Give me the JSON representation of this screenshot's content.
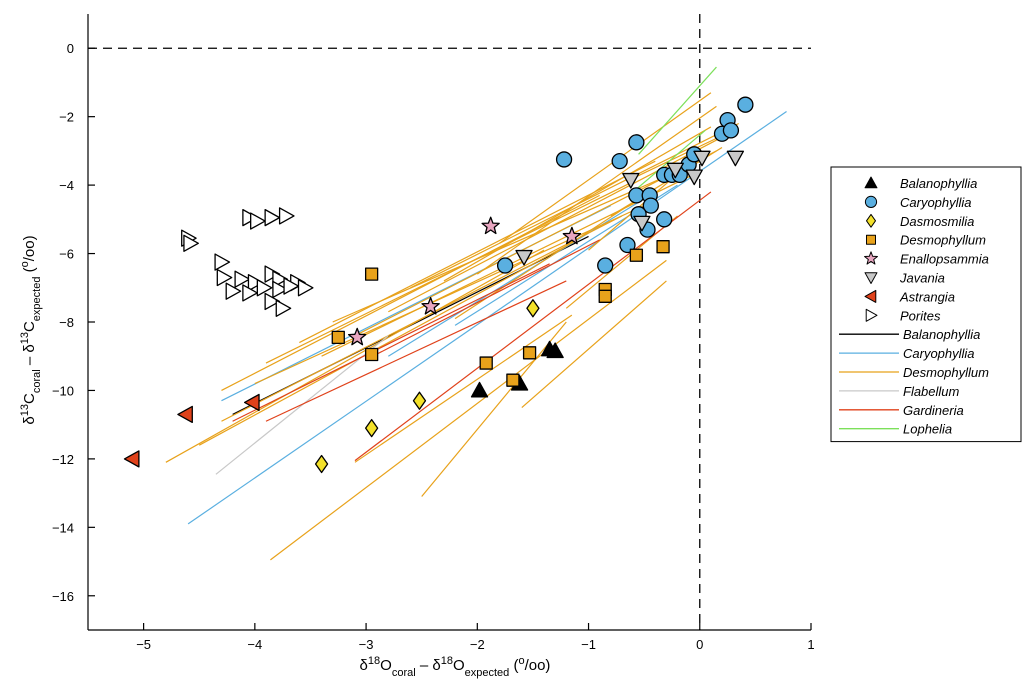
{
  "chart_data": {
    "type": "scatter",
    "title": "",
    "xlabel": {
      "base": "δ",
      "sup1": "18",
      "mid": "O",
      "sub1": "coral",
      "dash": " – δ",
      "sup2": "18",
      "mid2": "O",
      "sub2": "expected",
      "unit_open": " (",
      "unit_sup": "o",
      "unit_rest": "/oo)"
    },
    "ylabel": {
      "base": "δ",
      "sup1": "13",
      "mid": "C",
      "sub1": "coral",
      "dash": " – δ",
      "sup2": "13",
      "mid2": "C",
      "sub2": "expected",
      "unit_open": " (",
      "unit_sup": "o",
      "unit_rest": "/oo)"
    },
    "xlim": [
      -5.5,
      1
    ],
    "ylim": [
      -17,
      1
    ],
    "xticks": [
      -5,
      -4,
      -3,
      -2,
      -1,
      0,
      1
    ],
    "yticks": [
      0,
      -2,
      -4,
      -6,
      -8,
      -10,
      -12,
      -14,
      -16
    ],
    "xtick_labels": [
      "−5",
      "−4",
      "−3",
      "−2",
      "−1",
      "0",
      "1"
    ],
    "ytick_labels": [
      "0",
      "−2",
      "−4",
      "−6",
      "−8",
      "−10",
      "−12",
      "−14",
      "−16"
    ],
    "reference_lines": {
      "y": 0,
      "x": 0,
      "style": "dashed",
      "color": "#000000"
    },
    "grid": false,
    "legend_position": "right",
    "series": [
      {
        "name": "Balanophyllia",
        "marker": "triangle-up",
        "color": "#000000",
        "points": [
          [
            -1.98,
            -10.0
          ],
          [
            -1.62,
            -9.8
          ],
          [
            -1.35,
            -8.8
          ],
          [
            -1.3,
            -8.85
          ]
        ]
      },
      {
        "name": "Caryophyllia",
        "marker": "circle",
        "color": "#5AAFE0",
        "points": [
          [
            -1.22,
            -3.25
          ],
          [
            -1.75,
            -6.35
          ],
          [
            -0.72,
            -3.3
          ],
          [
            -0.57,
            -2.75
          ],
          [
            -0.32,
            -3.7
          ],
          [
            -0.25,
            -3.7
          ],
          [
            -0.18,
            -3.7
          ],
          [
            -0.1,
            -3.4
          ],
          [
            -0.05,
            -3.1
          ],
          [
            -0.57,
            -4.3
          ],
          [
            -0.45,
            -4.3
          ],
          [
            -0.44,
            -4.6
          ],
          [
            -0.32,
            -5.0
          ],
          [
            -0.55,
            -4.85
          ],
          [
            -0.47,
            -5.3
          ],
          [
            -0.65,
            -5.75
          ],
          [
            -0.85,
            -6.35
          ],
          [
            0.2,
            -2.5
          ],
          [
            0.25,
            -2.1
          ],
          [
            0.28,
            -2.4
          ],
          [
            0.41,
            -1.65
          ]
        ]
      },
      {
        "name": "Dasmosmilia",
        "marker": "diamond",
        "color": "#F3E12A",
        "points": [
          [
            -1.5,
            -7.6
          ],
          [
            -2.52,
            -10.3
          ],
          [
            -2.95,
            -11.1
          ],
          [
            -3.4,
            -12.15
          ]
        ]
      },
      {
        "name": "Desmophyllum",
        "marker": "square",
        "color": "#E8A21B",
        "points": [
          [
            -2.95,
            -6.6
          ],
          [
            -3.25,
            -8.45
          ],
          [
            -2.95,
            -8.95
          ],
          [
            -1.92,
            -9.2
          ],
          [
            -1.68,
            -9.7
          ],
          [
            -1.53,
            -8.9
          ],
          [
            -0.85,
            -7.05
          ],
          [
            -0.85,
            -7.25
          ],
          [
            -0.57,
            -6.05
          ],
          [
            -0.33,
            -5.8
          ]
        ]
      },
      {
        "name": "Enallopsammia",
        "marker": "star",
        "color": "#E8A6C0",
        "points": [
          [
            -1.88,
            -5.2
          ],
          [
            -1.15,
            -5.5
          ],
          [
            -2.42,
            -7.55
          ],
          [
            -3.08,
            -8.45
          ]
        ]
      },
      {
        "name": "Javania",
        "marker": "triangle-down",
        "color": "#C8C8C8",
        "points": [
          [
            -0.62,
            -3.85
          ],
          [
            -0.22,
            -3.55
          ],
          [
            -0.05,
            -3.75
          ],
          [
            0.02,
            -3.2
          ],
          [
            0.32,
            -3.2
          ],
          [
            -0.52,
            -5.1
          ],
          [
            -1.58,
            -6.1
          ]
        ]
      },
      {
        "name": "Astrangia",
        "marker": "triangle-left",
        "color": "#E0421B",
        "points": [
          [
            -5.1,
            -12.0
          ],
          [
            -4.62,
            -10.7
          ],
          [
            -4.02,
            -10.35
          ]
        ]
      },
      {
        "name": "Porites",
        "marker": "triangle-right",
        "color": "#FFFFFF",
        "points": [
          [
            -4.6,
            -5.55
          ],
          [
            -4.58,
            -5.7
          ],
          [
            -4.3,
            -6.25
          ],
          [
            -4.05,
            -4.95
          ],
          [
            -3.98,
            -5.05
          ],
          [
            -3.85,
            -4.95
          ],
          [
            -3.72,
            -4.9
          ],
          [
            -4.28,
            -6.7
          ],
          [
            -4.12,
            -6.75
          ],
          [
            -4.0,
            -6.85
          ],
          [
            -3.85,
            -6.6
          ],
          [
            -3.78,
            -6.75
          ],
          [
            -3.62,
            -6.85
          ],
          [
            -4.2,
            -7.1
          ],
          [
            -4.05,
            -7.15
          ],
          [
            -3.92,
            -7.0
          ],
          [
            -3.78,
            -7.05
          ],
          [
            -3.68,
            -6.95
          ],
          [
            -3.55,
            -7.0
          ],
          [
            -3.85,
            -7.4
          ],
          [
            -3.75,
            -7.6
          ]
        ]
      }
    ],
    "regression_lines": [
      {
        "name": "Balanophyllia",
        "color": "#000000",
        "segments": [
          [
            [
              -4.2,
              -10.7
            ],
            [
              -1.0,
              -5.5
            ]
          ]
        ]
      },
      {
        "name": "Caryophyllia",
        "color": "#5AAFE0",
        "segments": [
          [
            [
              -4.6,
              -13.9
            ],
            [
              0.78,
              -1.85
            ]
          ],
          [
            [
              -4.3,
              -10.3
            ],
            [
              -0.8,
              -4.6
            ]
          ],
          [
            [
              -2.2,
              -8.1
            ],
            [
              -0.2,
              -4.0
            ]
          ],
          [
            [
              -2.8,
              -9.0
            ],
            [
              -0.4,
              -4.2
            ]
          ]
        ]
      },
      {
        "name": "Desmophyllum",
        "color": "#E8A21B",
        "segments": [
          [
            [
              -4.3,
              -10.0
            ],
            [
              -0.9,
              -4.3
            ]
          ],
          [
            [
              -3.9,
              -9.2
            ],
            [
              -0.6,
              -3.9
            ]
          ],
          [
            [
              -3.6,
              -8.6
            ],
            [
              -0.4,
              -3.3
            ]
          ],
          [
            [
              -4.8,
              -12.1
            ],
            [
              -1.4,
              -5.9
            ]
          ],
          [
            [
              -4.5,
              -11.6
            ],
            [
              -1.1,
              -5.6
            ]
          ],
          [
            [
              -4.3,
              -10.9
            ],
            [
              -0.7,
              -4.9
            ]
          ],
          [
            [
              -4.0,
              -9.8
            ],
            [
              -0.5,
              -4.6
            ]
          ],
          [
            [
              -3.4,
              -9.0
            ],
            [
              0.0,
              -3.6
            ]
          ],
          [
            [
              -3.1,
              -8.4
            ],
            [
              0.15,
              -3.0
            ]
          ],
          [
            [
              -3.3,
              -8.0
            ],
            [
              -0.2,
              -3.6
            ]
          ],
          [
            [
              -2.8,
              -7.7
            ],
            [
              0.2,
              -2.6
            ]
          ],
          [
            [
              -2.6,
              -7.0
            ],
            [
              0.35,
              -2.2
            ]
          ],
          [
            [
              -2.3,
              -6.8
            ],
            [
              0.1,
              -2.3
            ]
          ],
          [
            [
              -2.0,
              -6.6
            ],
            [
              0.15,
              -1.7
            ]
          ],
          [
            [
              -1.8,
              -5.7
            ],
            [
              0.1,
              -1.3
            ]
          ],
          [
            [
              -2.2,
              -7.9
            ],
            [
              -0.5,
              -4.3
            ]
          ],
          [
            [
              -3.86,
              -14.95
            ],
            [
              -0.3,
              -6.2
            ]
          ],
          [
            [
              -3.1,
              -12.1
            ],
            [
              -1.15,
              -7.8
            ]
          ],
          [
            [
              -2.5,
              -13.1
            ],
            [
              -1.2,
              -8.0
            ]
          ],
          [
            [
              -1.6,
              -10.5
            ],
            [
              -0.3,
              -6.8
            ]
          ],
          [
            [
              -1.2,
              -7.6
            ],
            [
              -0.2,
              -4.9
            ]
          ],
          [
            [
              -1.0,
              -5.9
            ],
            [
              -0.1,
              -3.4
            ]
          ],
          [
            [
              -0.8,
              -4.9
            ],
            [
              0.2,
              -2.9
            ]
          ],
          [
            [
              -0.6,
              -3.8
            ],
            [
              0.3,
              -2.4
            ]
          ]
        ]
      },
      {
        "name": "Flabellum",
        "color": "#C8C8C8",
        "segments": [
          [
            [
              -4.35,
              -12.45
            ],
            [
              -2.8,
              -8.4
            ]
          ]
        ]
      },
      {
        "name": "Gardineria",
        "color": "#E0421B",
        "segments": [
          [
            [
              -3.1,
              -12.05
            ],
            [
              0.1,
              -4.2
            ]
          ],
          [
            [
              -4.2,
              -10.9
            ],
            [
              -1.35,
              -6.3
            ]
          ],
          [
            [
              -3.9,
              -10.9
            ],
            [
              -1.2,
              -6.8
            ]
          ],
          [
            [
              -3.0,
              -9.1
            ],
            [
              -0.9,
              -5.6
            ]
          ]
        ]
      },
      {
        "name": "Lophelia",
        "color": "#7CE05A",
        "segments": [
          [
            [
              -0.55,
              -3.1
            ],
            [
              0.15,
              -0.55
            ]
          ],
          [
            [
              -0.6,
              -4.2
            ],
            [
              0.05,
              -2.4
            ]
          ]
        ]
      }
    ]
  }
}
